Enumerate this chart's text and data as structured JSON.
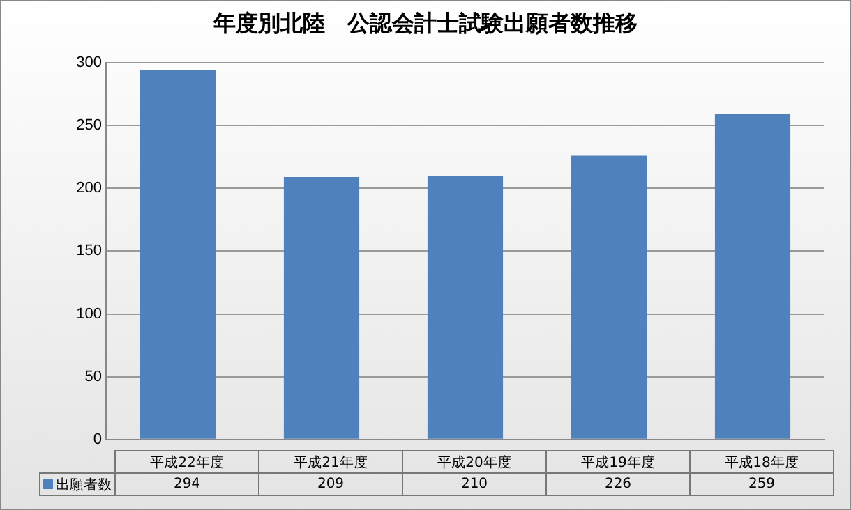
{
  "chart_data": {
    "type": "bar",
    "title": "年度別北陸　公認会計士試験出願者数推移",
    "categories": [
      "平成22年度",
      "平成21年度",
      "平成20年度",
      "平成19年度",
      "平成18年度"
    ],
    "series": [
      {
        "name": "出願者数",
        "color": "#4f81bd",
        "values": [
          294,
          209,
          210,
          226,
          259
        ]
      }
    ],
    "ylim": [
      0,
      300
    ],
    "yticks": [
      0,
      50,
      100,
      150,
      200,
      250,
      300
    ],
    "grid": "y",
    "data_labels": true
  }
}
